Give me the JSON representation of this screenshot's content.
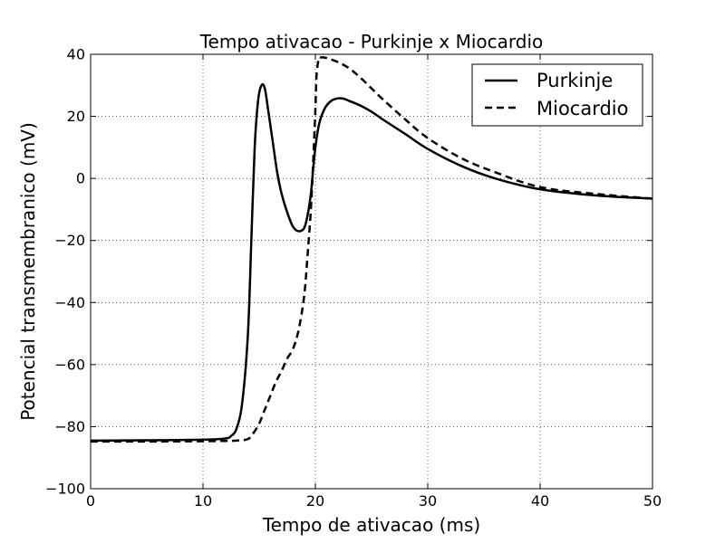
{
  "chart_data": {
    "type": "line",
    "title": "Tempo ativacao - Purkinje x Miocardio",
    "xlabel": "Tempo de ativacao (ms)",
    "ylabel": "Potencial transmembranico (mV)",
    "xlim": [
      0,
      50
    ],
    "ylim": [
      -100,
      40
    ],
    "xticks": [
      0,
      10,
      20,
      30,
      40,
      50
    ],
    "xtick_labels": [
      "0",
      "10",
      "20",
      "30",
      "40",
      "50"
    ],
    "yticks": [
      -100,
      -80,
      -60,
      -40,
      -20,
      0,
      20,
      40
    ],
    "ytick_labels": [
      "−100",
      "−80",
      "−60",
      "−40",
      "−20",
      "0",
      "20",
      "40"
    ],
    "grid": true,
    "legend_position": "top-right",
    "series": [
      {
        "name": "Purkinje",
        "line_style": "solid",
        "color": "#000000",
        "x": [
          0,
          5,
          10,
          12,
          12.5,
          13,
          13.5,
          14,
          14.3,
          14.6,
          14.9,
          15.2,
          15.5,
          15.8,
          16.2,
          16.6,
          17,
          17.5,
          18,
          18.5,
          19,
          19.3,
          19.6,
          19.8,
          20,
          20.2,
          20.4,
          20.7,
          21,
          21.5,
          22,
          22.5,
          23,
          24,
          25,
          26,
          28,
          30,
          33,
          36,
          40,
          45,
          50
        ],
        "y": [
          -84.5,
          -84.4,
          -84.2,
          -83.8,
          -83,
          -80.5,
          -72,
          -50,
          -20,
          10,
          25,
          30,
          29,
          22,
          12,
          2,
          -5,
          -11,
          -15.5,
          -17,
          -16,
          -12,
          -5,
          3,
          10,
          15,
          18.5,
          21.5,
          23.5,
          25.2,
          25.8,
          25.7,
          25,
          23.5,
          21.5,
          19,
          14.3,
          9.5,
          4,
          0,
          -3.5,
          -5.5,
          -6.5
        ]
      },
      {
        "name": "Miocardio",
        "line_style": "dashed",
        "color": "#000000",
        "x": [
          0,
          5,
          10,
          12,
          13,
          14,
          14.5,
          15,
          15.5,
          16,
          16.5,
          17,
          17.5,
          18,
          18.5,
          19,
          19.3,
          19.6,
          19.8,
          20,
          20.1,
          20.3,
          20.5,
          21,
          22,
          23,
          24,
          25,
          26,
          28,
          30,
          33,
          36,
          40,
          45,
          50
        ],
        "y": [
          -84.8,
          -84.8,
          -84.7,
          -84.6,
          -84.5,
          -84,
          -82,
          -79,
          -74.5,
          -70,
          -65.5,
          -62,
          -58,
          -55,
          -49,
          -38,
          -25,
          -10,
          5,
          22,
          33,
          38.5,
          39,
          38.8,
          37.5,
          35.5,
          32.5,
          29,
          25.5,
          19,
          13,
          6.5,
          2,
          -2.8,
          -5,
          -6.5
        ]
      }
    ]
  }
}
